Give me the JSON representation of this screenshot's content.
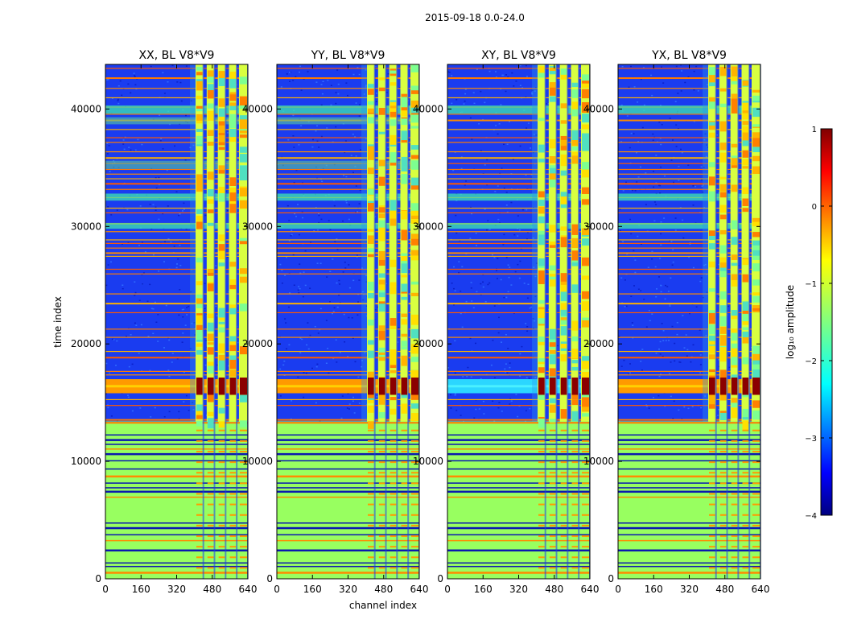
{
  "figure": {
    "title": "2015-09-18 0.0-24.0"
  },
  "chart_data": {
    "type": "heatmap",
    "panels": [
      {
        "title": "XX, BL V8*V9",
        "polarization": "XX"
      },
      {
        "title": "YY, BL V8*V9",
        "polarization": "YY"
      },
      {
        "title": "XY, BL V8*V9",
        "polarization": "XY"
      },
      {
        "title": "YX, BL V8*V9",
        "polarization": "YX"
      }
    ],
    "xlabel": "channel index",
    "ylabel": "time index",
    "xlim": [
      0,
      640
    ],
    "ylim": [
      0,
      43800
    ],
    "xticks": [
      0,
      160,
      320,
      480,
      640
    ],
    "yticks": [
      0,
      10000,
      20000,
      30000,
      40000
    ],
    "colorbar": {
      "label": "log₁₀ amplitude",
      "range": [
        -4,
        1
      ],
      "ticks": [
        1,
        0,
        -1,
        -2,
        -3,
        -4
      ],
      "tick_labels": [
        "1",
        "0",
        "−1",
        "−2",
        "−3",
        "−4"
      ],
      "colormap": "jet"
    },
    "features": {
      "strong_band_time": [
        15800,
        17000
      ],
      "strong_band_channels": [
        405,
        640
      ],
      "rfi_column_channels": [
        405,
        440,
        455,
        490,
        505,
        540,
        555,
        590,
        600,
        640
      ],
      "saturated_block_time": [
        0,
        13400
      ],
      "striped_rows_time": [
        13400,
        43800
      ]
    }
  },
  "colors": {
    "background": "#ffffff",
    "axis": "#000000"
  }
}
